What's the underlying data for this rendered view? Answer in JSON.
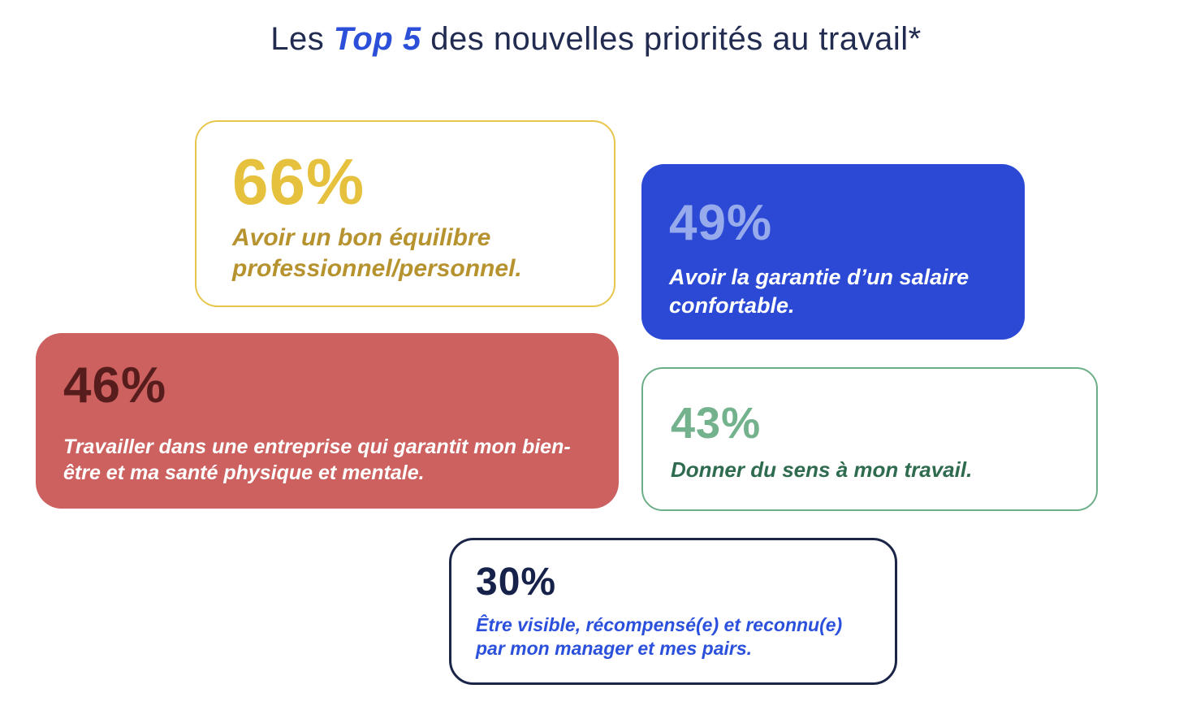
{
  "title": {
    "prefix": "Les ",
    "highlight": "Top 5",
    "suffix": " des nouvelles priorités au travail*"
  },
  "cards": [
    {
      "rank": 1,
      "value": "66%",
      "description": "Avoir un bon équilibre professionnel/personnel.",
      "style": "outlined",
      "border_color": "#E8C54B",
      "value_color": "#E5C13D",
      "text_color": "#B6932F",
      "background": "#FFFFFF"
    },
    {
      "rank": 2,
      "value": "49%",
      "description": "Avoir la garantie d’un salaire confortable.",
      "style": "filled",
      "background": "#2B49D5",
      "value_color": "#97ABEC",
      "text_color": "#FFFFFF"
    },
    {
      "rank": 3,
      "value": "46%",
      "description": "Travailler dans une entreprise qui garantit mon bien-être et ma santé physique et mentale.",
      "style": "filled",
      "background": "#CC615F",
      "value_color": "#571D1D",
      "text_color": "#FFFFFF"
    },
    {
      "rank": 4,
      "value": "43%",
      "description": "Donner du sens à mon travail.",
      "style": "outlined",
      "border_color": "#6BAE88",
      "value_color": "#74B28D",
      "text_color": "#2F6B4F",
      "background": "#FFFFFF"
    },
    {
      "rank": 5,
      "value": "30%",
      "description": "Être visible, récompensé(e) et reconnu(e) par mon manager et mes pairs.",
      "style": "outlined",
      "border_color": "#1B2547",
      "value_color": "#16224A",
      "text_color": "#2B50DC",
      "background": "#FFFFFF"
    }
  ],
  "colors": {
    "title_text": "#222B50",
    "title_highlight": "#2B4FD9",
    "page_background": "#FFFFFF"
  },
  "chart_data": {
    "type": "table",
    "title": "Les Top 5 des nouvelles priorités au travail*",
    "categories": [
      "Avoir un bon équilibre professionnel/personnel.",
      "Avoir la garantie d’un salaire confortable.",
      "Travailler dans une entreprise qui garantit mon bien-être et ma santé physique et mentale.",
      "Donner du sens à mon travail.",
      "Être visible, récompensé(e) et reconnu(e) par mon manager et mes pairs."
    ],
    "values": [
      66,
      49,
      46,
      43,
      30
    ],
    "unit": "%",
    "layout": "kpi-cards"
  }
}
